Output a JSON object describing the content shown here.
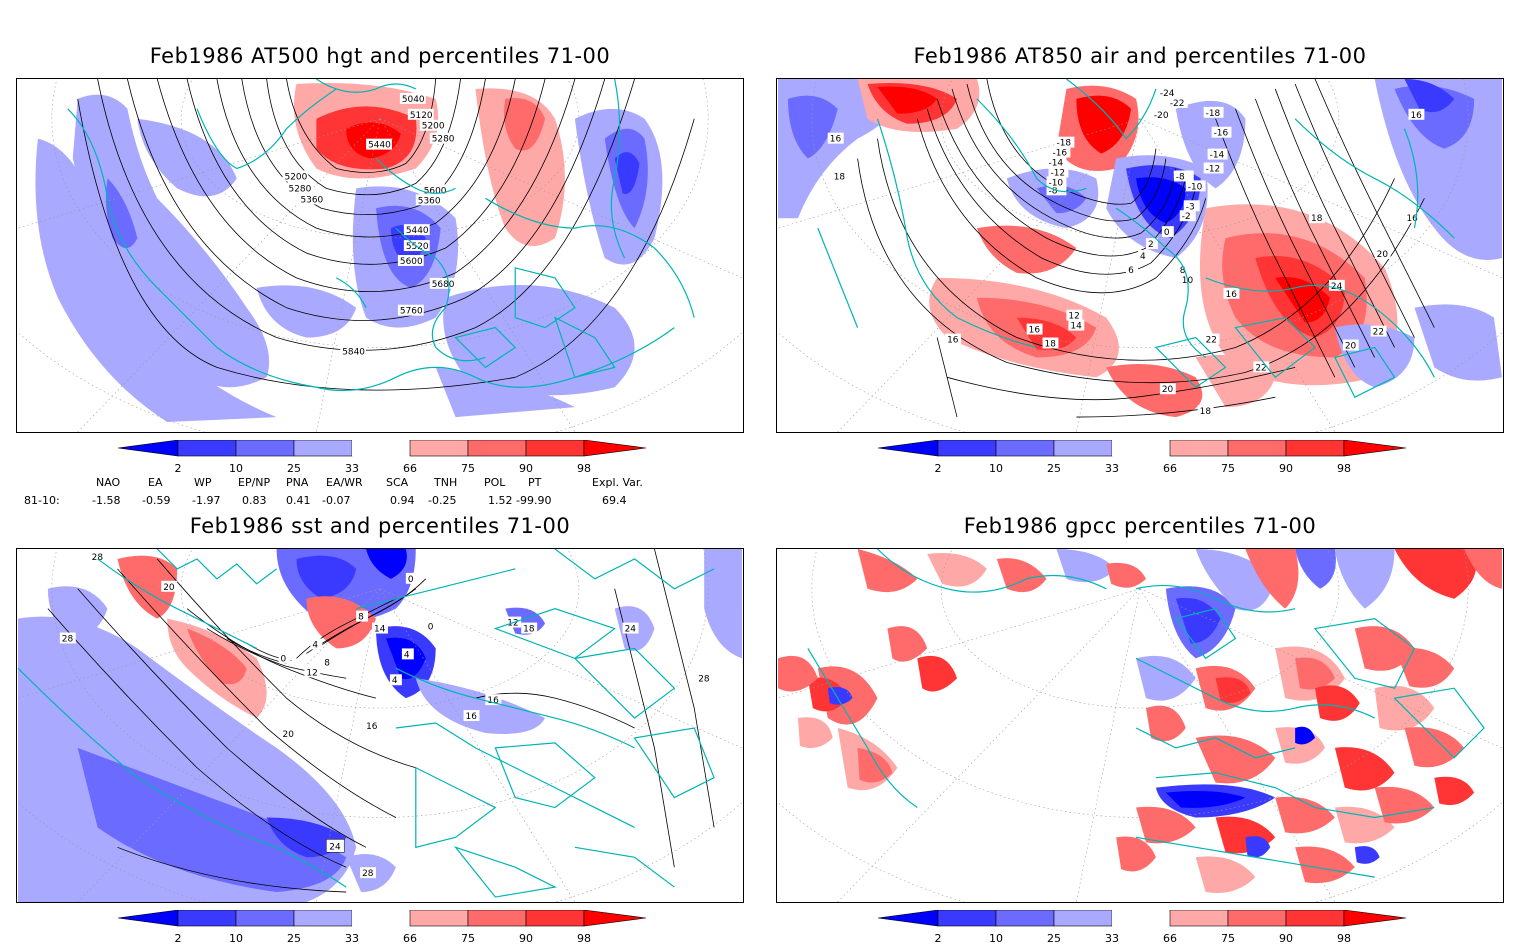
{
  "panels": {
    "hgt": {
      "title": "Feb1986 AT500 hgt and percentiles 71-00",
      "contour_labels": [
        "5040",
        "5120",
        "5200",
        "5280",
        "5440",
        "5200",
        "5280",
        "5360",
        "5600",
        "5360",
        "5440",
        "5520",
        "5600",
        "5680",
        "5760",
        "5840"
      ]
    },
    "air": {
      "title": "Feb1986 AT850 air and percentiles 71-00",
      "contour_labels": [
        "-24",
        "-22",
        "-20",
        "-18",
        "-16",
        "-14",
        "-12",
        "-10",
        "-8",
        "-18",
        "-16",
        "-14",
        "-12",
        "-10",
        "-8",
        "-3",
        "-2",
        "0",
        "2",
        "4",
        "6",
        "8",
        "10",
        "12",
        "14",
        "16",
        "16",
        "16",
        "16",
        "18",
        "18",
        "16",
        "18",
        "20",
        "22",
        "22",
        "22",
        "24",
        "20",
        "20",
        "18",
        "16"
      ]
    },
    "sst": {
      "title": "Feb1986 sst and percentiles 71-00",
      "contour_labels": [
        "28",
        "28",
        "20",
        "0",
        "4",
        "8",
        "12",
        "16",
        "16",
        "16",
        "20",
        "24",
        "24",
        "28",
        "28",
        "0",
        "0",
        "4",
        "8",
        "14",
        "12",
        "4",
        "18"
      ]
    },
    "gpcc": {
      "title": "Feb1986 gpcc percentiles 71-00"
    }
  },
  "colorbar": {
    "labels": [
      "2",
      "10",
      "25",
      "33",
      "66",
      "75",
      "90",
      "98"
    ],
    "colors": [
      "#0000ff",
      "#3a3aff",
      "#6b6bff",
      "#a9a9ff",
      "#ffffff",
      "#ffa8a8",
      "#ff6b6b",
      "#ff3434",
      "#ff0000"
    ]
  },
  "teleconnections": {
    "headers": [
      "NAO",
      "EA",
      "WP",
      "EP/NP",
      "PNA",
      "EA/WR",
      "SCA",
      "TNH",
      "POL",
      "PT",
      "Expl. Var."
    ],
    "row_label": "81-10:",
    "values": [
      "-1.58",
      "-0.59",
      "-1.97",
      "0.83",
      "0.41",
      "-0.07",
      "0.94",
      "-0.25",
      "1.52",
      "-99.90",
      "69.4"
    ]
  },
  "colors": {
    "coastline": "#00b4b4",
    "contour": "#000000",
    "grid": "#9a9a9a"
  }
}
